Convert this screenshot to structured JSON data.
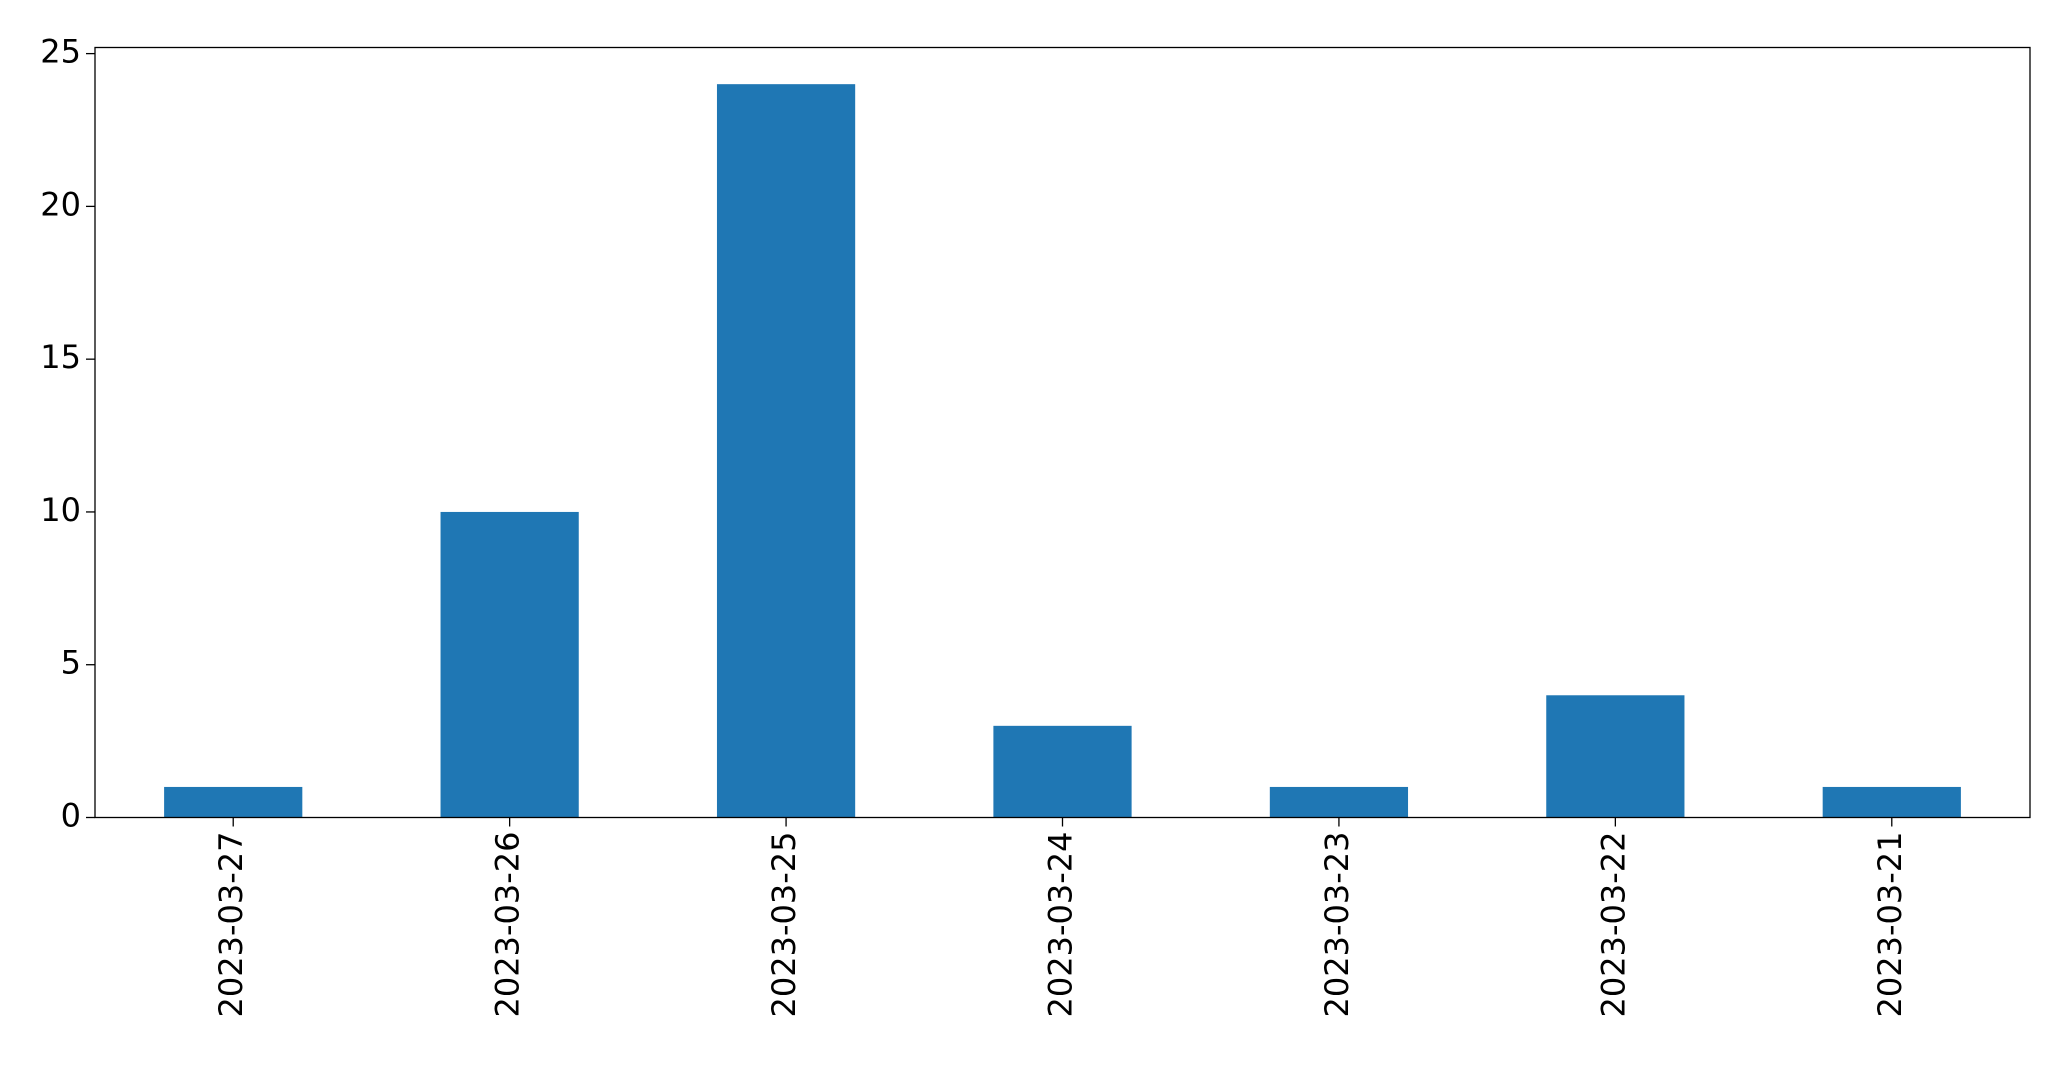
{
  "chart_data": {
    "type": "bar",
    "categories": [
      "2023-03-27",
      "2023-03-26",
      "2023-03-25",
      "2023-03-24",
      "2023-03-23",
      "2023-03-22",
      "2023-03-21"
    ],
    "values": [
      1,
      10,
      24,
      3,
      1,
      4,
      1
    ],
    "color": "#1f77b4",
    "ylim": [
      0,
      25.2
    ],
    "yticks": [
      0,
      5,
      10,
      15,
      20,
      25
    ],
    "grid": false
  }
}
